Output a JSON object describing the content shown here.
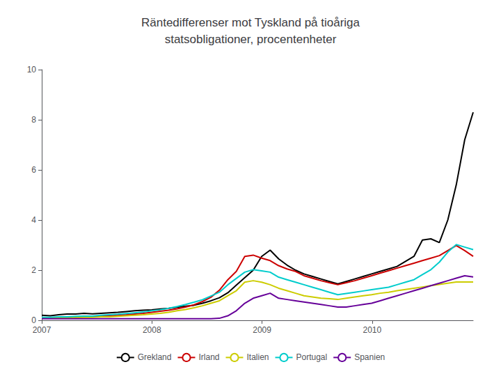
{
  "chart_data": {
    "type": "line",
    "title": "Räntedifferenser mot Tyskland på tioåriga\nstatsobligationer, procentenheter",
    "x": [
      2007.0,
      2007.0768,
      2007.1536,
      2007.2304,
      2007.3072,
      2007.384,
      2007.4608,
      2007.5376,
      2007.6144,
      2007.6912,
      2007.768,
      2007.8448,
      2007.9216,
      2007.9985,
      2008.0753,
      2008.1521,
      2008.2289,
      2008.3057,
      2008.3825,
      2008.4593,
      2008.5361,
      2008.6129,
      2008.6897,
      2008.7665,
      2008.8433,
      2008.9201,
      2008.9969,
      2009.0737,
      2009.1505,
      2009.2273,
      2009.3041,
      2009.3809,
      2009.4577,
      2009.5345,
      2009.6113,
      2009.6881,
      2009.7649,
      2009.8417,
      2009.9185,
      2009.9954,
      2010.0722,
      2010.149,
      2010.2258,
      2010.3026,
      2010.3794,
      2010.4562,
      2010.533,
      2010.6098,
      2010.6866,
      2010.7634,
      2010.8402,
      2010.917
    ],
    "xlim": [
      2007,
      2010.917
    ],
    "xticks": [
      2007,
      2008,
      2009,
      2010
    ],
    "ylim": [
      0,
      10
    ],
    "yticks": [
      0,
      2,
      4,
      6,
      8,
      10
    ],
    "grid": false,
    "legend": "bottom",
    "series": [
      {
        "name": "Grekland",
        "color": "#000000",
        "values": [
          0.2,
          0.18,
          0.22,
          0.25,
          0.25,
          0.28,
          0.26,
          0.28,
          0.3,
          0.32,
          0.35,
          0.38,
          0.4,
          0.42,
          0.45,
          0.48,
          0.52,
          0.56,
          0.6,
          0.68,
          0.78,
          0.9,
          1.1,
          1.4,
          1.7,
          2.0,
          2.55,
          2.8,
          2.45,
          2.2,
          2.0,
          1.85,
          1.75,
          1.65,
          1.55,
          1.45,
          1.55,
          1.65,
          1.75,
          1.85,
          1.95,
          2.05,
          2.15,
          2.35,
          2.55,
          3.2,
          3.25,
          3.1,
          4.0,
          5.4,
          7.2,
          8.3
        ]
      },
      {
        "name": "Irland",
        "color": "#cc0000",
        "values": [
          0.1,
          0.1,
          0.1,
          0.12,
          0.12,
          0.13,
          0.14,
          0.16,
          0.18,
          0.2,
          0.22,
          0.25,
          0.28,
          0.32,
          0.36,
          0.4,
          0.46,
          0.53,
          0.62,
          0.75,
          0.92,
          1.2,
          1.62,
          1.95,
          2.55,
          2.6,
          2.48,
          2.38,
          2.18,
          2.05,
          1.95,
          1.78,
          1.68,
          1.58,
          1.5,
          1.42,
          1.5,
          1.58,
          1.68,
          1.78,
          1.88,
          1.98,
          2.08,
          2.18,
          2.28,
          2.38,
          2.48,
          2.58,
          2.78,
          2.98,
          2.78,
          2.55
        ]
      },
      {
        "name": "Italien",
        "color": "#cccc00",
        "values": [
          0.1,
          0.1,
          0.1,
          0.1,
          0.12,
          0.12,
          0.12,
          0.14,
          0.14,
          0.16,
          0.18,
          0.2,
          0.22,
          0.25,
          0.28,
          0.32,
          0.38,
          0.43,
          0.5,
          0.58,
          0.68,
          0.78,
          0.98,
          1.18,
          1.52,
          1.58,
          1.52,
          1.42,
          1.28,
          1.18,
          1.08,
          0.98,
          0.93,
          0.88,
          0.86,
          0.83,
          0.88,
          0.93,
          0.98,
          1.02,
          1.08,
          1.12,
          1.18,
          1.23,
          1.28,
          1.33,
          1.38,
          1.43,
          1.48,
          1.53,
          1.53,
          1.53
        ]
      },
      {
        "name": "Portugal",
        "color": "#00cccc",
        "values": [
          0.12,
          0.12,
          0.14,
          0.14,
          0.16,
          0.17,
          0.17,
          0.2,
          0.22,
          0.24,
          0.27,
          0.3,
          0.33,
          0.38,
          0.42,
          0.48,
          0.55,
          0.63,
          0.72,
          0.82,
          0.97,
          1.12,
          1.42,
          1.67,
          1.92,
          2.02,
          1.97,
          1.92,
          1.72,
          1.62,
          1.52,
          1.42,
          1.32,
          1.22,
          1.12,
          1.02,
          1.07,
          1.12,
          1.17,
          1.22,
          1.27,
          1.32,
          1.42,
          1.52,
          1.62,
          1.82,
          2.02,
          2.32,
          2.72,
          3.02,
          2.92,
          2.82
        ]
      },
      {
        "name": "Spanien",
        "color": "#660099",
        "values": [
          0.06,
          0.06,
          0.06,
          0.06,
          0.06,
          0.06,
          0.06,
          0.06,
          0.06,
          0.06,
          0.06,
          0.06,
          0.06,
          0.06,
          0.06,
          0.06,
          0.06,
          0.06,
          0.06,
          0.06,
          0.06,
          0.08,
          0.18,
          0.38,
          0.68,
          0.88,
          0.98,
          1.08,
          0.88,
          0.83,
          0.78,
          0.73,
          0.68,
          0.63,
          0.58,
          0.53,
          0.53,
          0.58,
          0.63,
          0.68,
          0.78,
          0.88,
          0.98,
          1.08,
          1.18,
          1.28,
          1.38,
          1.48,
          1.58,
          1.68,
          1.78,
          1.73
        ]
      }
    ]
  }
}
